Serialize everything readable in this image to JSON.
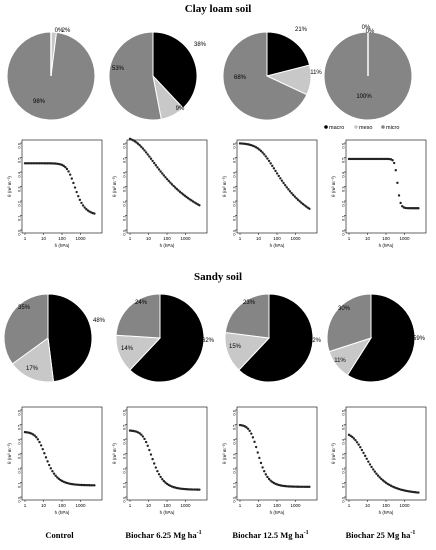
{
  "sections": {
    "clay_title": "Clay loam soil",
    "sandy_title": "Sandy soil"
  },
  "legend": {
    "items": [
      "macro",
      "meso",
      "micro"
    ]
  },
  "treatments": [
    {
      "main": "Control",
      "sup": ""
    },
    {
      "main": "Biochar 6.25 Mg ha",
      "sup": "-1"
    },
    {
      "main": "Biochar 12.5 Mg ha",
      "sup": "-1"
    },
    {
      "main": "Biochar 25 Mg ha",
      "sup": "-1"
    }
  ],
  "colors": {
    "macro": "#000000",
    "meso": "#c8c8c8",
    "micro": "#858585"
  },
  "chart_data": [
    {
      "type": "pie",
      "group": "Clay loam soil",
      "treatment": "Control",
      "categories": [
        "macro",
        "meso",
        "micro"
      ],
      "values": [
        0,
        2,
        98
      ],
      "labels": [
        "0%",
        "2%",
        "98%"
      ]
    },
    {
      "type": "pie",
      "group": "Clay loam soil",
      "treatment": "Biochar 6.25",
      "categories": [
        "macro",
        "meso",
        "micro"
      ],
      "values": [
        38,
        9,
        53
      ],
      "labels": [
        "38%",
        "9%",
        "53%"
      ]
    },
    {
      "type": "pie",
      "group": "Clay loam soil",
      "treatment": "Biochar 12.5",
      "categories": [
        "macro",
        "meso",
        "micro"
      ],
      "values": [
        21,
        11,
        68
      ],
      "labels": [
        "21%",
        "11%",
        "68%"
      ]
    },
    {
      "type": "pie",
      "group": "Clay loam soil",
      "treatment": "Biochar 25",
      "categories": [
        "macro",
        "meso",
        "micro"
      ],
      "values": [
        0,
        0,
        100
      ],
      "labels": [
        "0%",
        "0%",
        "100%"
      ]
    },
    {
      "type": "scatter",
      "group": "Clay loam soil",
      "treatment": "Control",
      "xlabel": "h (hPa)",
      "ylabel": "θ (m³ m⁻³)",
      "xscale": "log",
      "xlim": [
        1,
        10000
      ],
      "ylim": [
        0,
        0.6
      ],
      "xticks": [
        "1",
        "10",
        "100",
        "1000"
      ],
      "yticks": [
        "0.0",
        "0.1",
        "0.2",
        "0.3",
        "0.4",
        "0.5",
        "0.6"
      ],
      "model": {
        "thr": 0.1,
        "ths": 0.46,
        "alpha": 0.0028,
        "n": 2.2
      }
    },
    {
      "type": "scatter",
      "group": "Clay loam soil",
      "treatment": "Biochar 6.25",
      "xlabel": "h (hPa)",
      "ylabel": "θ (m³ m⁻³)",
      "xscale": "log",
      "xlim": [
        1,
        10000
      ],
      "ylim": [
        0,
        0.6
      ],
      "xticks": [
        "1",
        "10",
        "100",
        "1000"
      ],
      "yticks": [
        "0.0",
        "0.1",
        "0.2",
        "0.3",
        "0.4",
        "0.5",
        "0.6"
      ],
      "model": {
        "thr": 0.0,
        "ths": 0.65,
        "alpha": 0.3,
        "n": 1.18
      }
    },
    {
      "type": "scatter",
      "group": "Clay loam soil",
      "treatment": "Biochar 12.5",
      "xlabel": "h (hPa)",
      "ylabel": "θ (m³ m⁻³)",
      "xscale": "log",
      "xlim": [
        1,
        10000
      ],
      "ylim": [
        0,
        0.6
      ],
      "xticks": [
        "1",
        "10",
        "100",
        "1000"
      ],
      "yticks": [
        "0.0",
        "0.1",
        "0.2",
        "0.3",
        "0.4",
        "0.5",
        "0.6"
      ],
      "model": {
        "thr": 0.0,
        "ths": 0.6,
        "alpha": 0.05,
        "n": 1.25
      }
    },
    {
      "type": "scatter",
      "group": "Clay loam soil",
      "treatment": "Biochar 25",
      "xlabel": "h (hPa)",
      "ylabel": "θ (m³ m⁻³)",
      "xscale": "log",
      "xlim": [
        1,
        10000
      ],
      "ylim": [
        0,
        0.6
      ],
      "xticks": [
        "1",
        "10",
        "100",
        "1000"
      ],
      "yticks": [
        "0.0",
        "0.1",
        "0.2",
        "0.3",
        "0.4",
        "0.5",
        "0.6"
      ],
      "model": {
        "thr": 0.15,
        "ths": 0.49,
        "alpha": 0.0025,
        "n": 6.0
      }
    },
    {
      "type": "pie",
      "group": "Sandy soil",
      "treatment": "Control",
      "categories": [
        "macro",
        "meso",
        "micro"
      ],
      "values": [
        48,
        17,
        35
      ],
      "labels": [
        "48%",
        "17%",
        "35%"
      ]
    },
    {
      "type": "pie",
      "group": "Sandy soil",
      "treatment": "Biochar 6.25",
      "categories": [
        "macro",
        "meso",
        "micro"
      ],
      "values": [
        62,
        14,
        24
      ],
      "labels": [
        "62%",
        "14%",
        "24%"
      ]
    },
    {
      "type": "pie",
      "group": "Sandy soil",
      "treatment": "Biochar 12.5",
      "categories": [
        "macro",
        "meso",
        "micro"
      ],
      "values": [
        62,
        15,
        23
      ],
      "labels": [
        "62%",
        "15%",
        "23%"
      ]
    },
    {
      "type": "pie",
      "group": "Sandy soil",
      "treatment": "Biochar 25",
      "categories": [
        "macro",
        "meso",
        "micro"
      ],
      "values": [
        59,
        11,
        30
      ],
      "labels": [
        "59%",
        "11%",
        "30%"
      ]
    },
    {
      "type": "scatter",
      "group": "Sandy soil",
      "treatment": "Control",
      "xlabel": "h (hPa)",
      "ylabel": "θ (m³ m⁻³)",
      "xscale": "log",
      "xlim": [
        1,
        10000
      ],
      "ylim": [
        0,
        0.6
      ],
      "xticks": [
        "1",
        "10",
        "100",
        "1000"
      ],
      "yticks": [
        "0.0",
        "0.1",
        "0.2",
        "0.3",
        "0.4",
        "0.5",
        "0.6"
      ],
      "model": {
        "thr": 0.08,
        "ths": 0.45,
        "alpha": 0.12,
        "n": 2.0
      }
    },
    {
      "type": "scatter",
      "group": "Sandy soil",
      "treatment": "Biochar 6.25",
      "xlabel": "h (hPa)",
      "ylabel": "θ (m³ m⁻³)",
      "xscale": "log",
      "xlim": [
        1,
        10000
      ],
      "ylim": [
        0,
        0.6
      ],
      "xticks": [
        "1",
        "10",
        "100",
        "1000"
      ],
      "yticks": [
        "0.0",
        "0.1",
        "0.2",
        "0.3",
        "0.4",
        "0.5",
        "0.6"
      ],
      "model": {
        "thr": 0.05,
        "ths": 0.46,
        "alpha": 0.1,
        "n": 2.0
      }
    },
    {
      "type": "scatter",
      "group": "Sandy soil",
      "treatment": "Biochar 12.5",
      "xlabel": "h (hPa)",
      "ylabel": "θ (m³ m⁻³)",
      "xscale": "log",
      "xlim": [
        1,
        10000
      ],
      "ylim": [
        0,
        0.6
      ],
      "xticks": [
        "1",
        "10",
        "100",
        "1000"
      ],
      "yticks": [
        "0.0",
        "0.1",
        "0.2",
        "0.3",
        "0.4",
        "0.5",
        "0.6"
      ],
      "model": {
        "thr": 0.07,
        "ths": 0.5,
        "alpha": 0.15,
        "n": 2.2
      }
    },
    {
      "type": "scatter",
      "group": "Sandy soil",
      "treatment": "Biochar 25",
      "xlabel": "h (hPa)",
      "ylabel": "θ (m³ m⁻³)",
      "xscale": "log",
      "xlim": [
        1,
        10000
      ],
      "ylim": [
        0,
        0.6
      ],
      "xticks": [
        "1",
        "10",
        "100",
        "1000"
      ],
      "yticks": [
        "0.0",
        "0.1",
        "0.2",
        "0.3",
        "0.4",
        "0.5",
        "0.6"
      ],
      "model": {
        "thr": 0.02,
        "ths": 0.45,
        "alpha": 0.3,
        "n": 1.5
      }
    }
  ]
}
